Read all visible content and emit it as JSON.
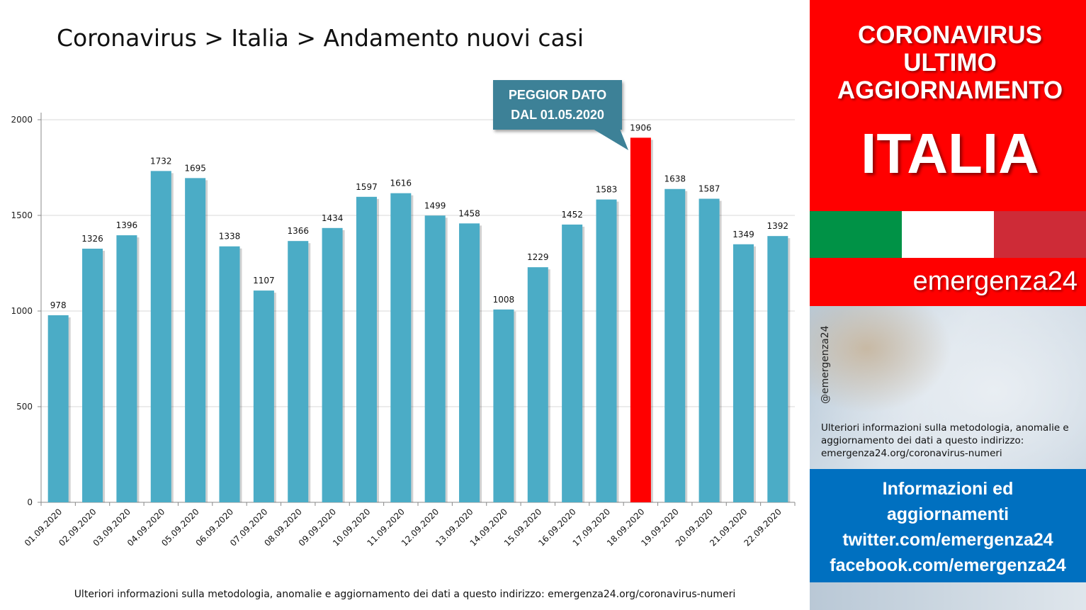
{
  "chart_data": {
    "type": "bar",
    "title": "Coronavirus > Italia > Andamento nuovi casi",
    "xlabel": "",
    "ylabel": "",
    "ylim": [
      0,
      2000
    ],
    "yticks": [
      "0",
      "500",
      "1000",
      "1500",
      "2000"
    ],
    "grid": true,
    "categories": [
      "01.09.2020",
      "02.09.2020",
      "03.09.2020",
      "04.09.2020",
      "05.09.2020",
      "06.09.2020",
      "07.09.2020",
      "08.09.2020",
      "09.09.2020",
      "10.09.2020",
      "11.09.2020",
      "12.09.2020",
      "13.09.2020",
      "14.09.2020",
      "15.09.2020",
      "16.09.2020",
      "17.09.2020",
      "18.09.2020",
      "19.09.2020",
      "20.09.2020",
      "21.09.2020",
      "22.09.2020"
    ],
    "values": [
      978,
      1326,
      1396,
      1732,
      1695,
      1338,
      1107,
      1366,
      1434,
      1597,
      1616,
      1499,
      1458,
      1008,
      1229,
      1452,
      1583,
      1906,
      1638,
      1587,
      1349,
      1392
    ],
    "highlight_index": 17,
    "colors": {
      "bar": "#4bacc6",
      "highlight": "#ff0000",
      "grid": "#d9d9d9"
    },
    "annotation": {
      "line1": "PEGGIOR DATO",
      "line2": "DAL 01.05.2020",
      "color": "#3d8197"
    }
  },
  "footnote": "Ulteriori informazioni sulla metodologia, anomalie e aggiornamento dei dati a questo indirizzo: emergenza24.org/coronavirus-numeri",
  "side": {
    "headline": [
      "CORONAVIRUS",
      "ULTIMO",
      "AGGIORNAMENTO"
    ],
    "country": "ITALIA",
    "flag_colors": [
      "#009246",
      "#ffffff",
      "#ce2b37"
    ],
    "brand": "emergenza24",
    "handle": "@emergenza24",
    "note": "Ulteriori informazioni sulla metodologia, anomalie e aggiornamento dei dati a questo indirizzo: emergenza24.org/coronavirus-numeri",
    "info": [
      "Informazioni ed",
      "aggiornamenti",
      "twitter.com/emergenza24",
      "facebook.com/emergenza24"
    ],
    "colors": {
      "red": "#ff0000",
      "blue": "#0070c0"
    }
  }
}
